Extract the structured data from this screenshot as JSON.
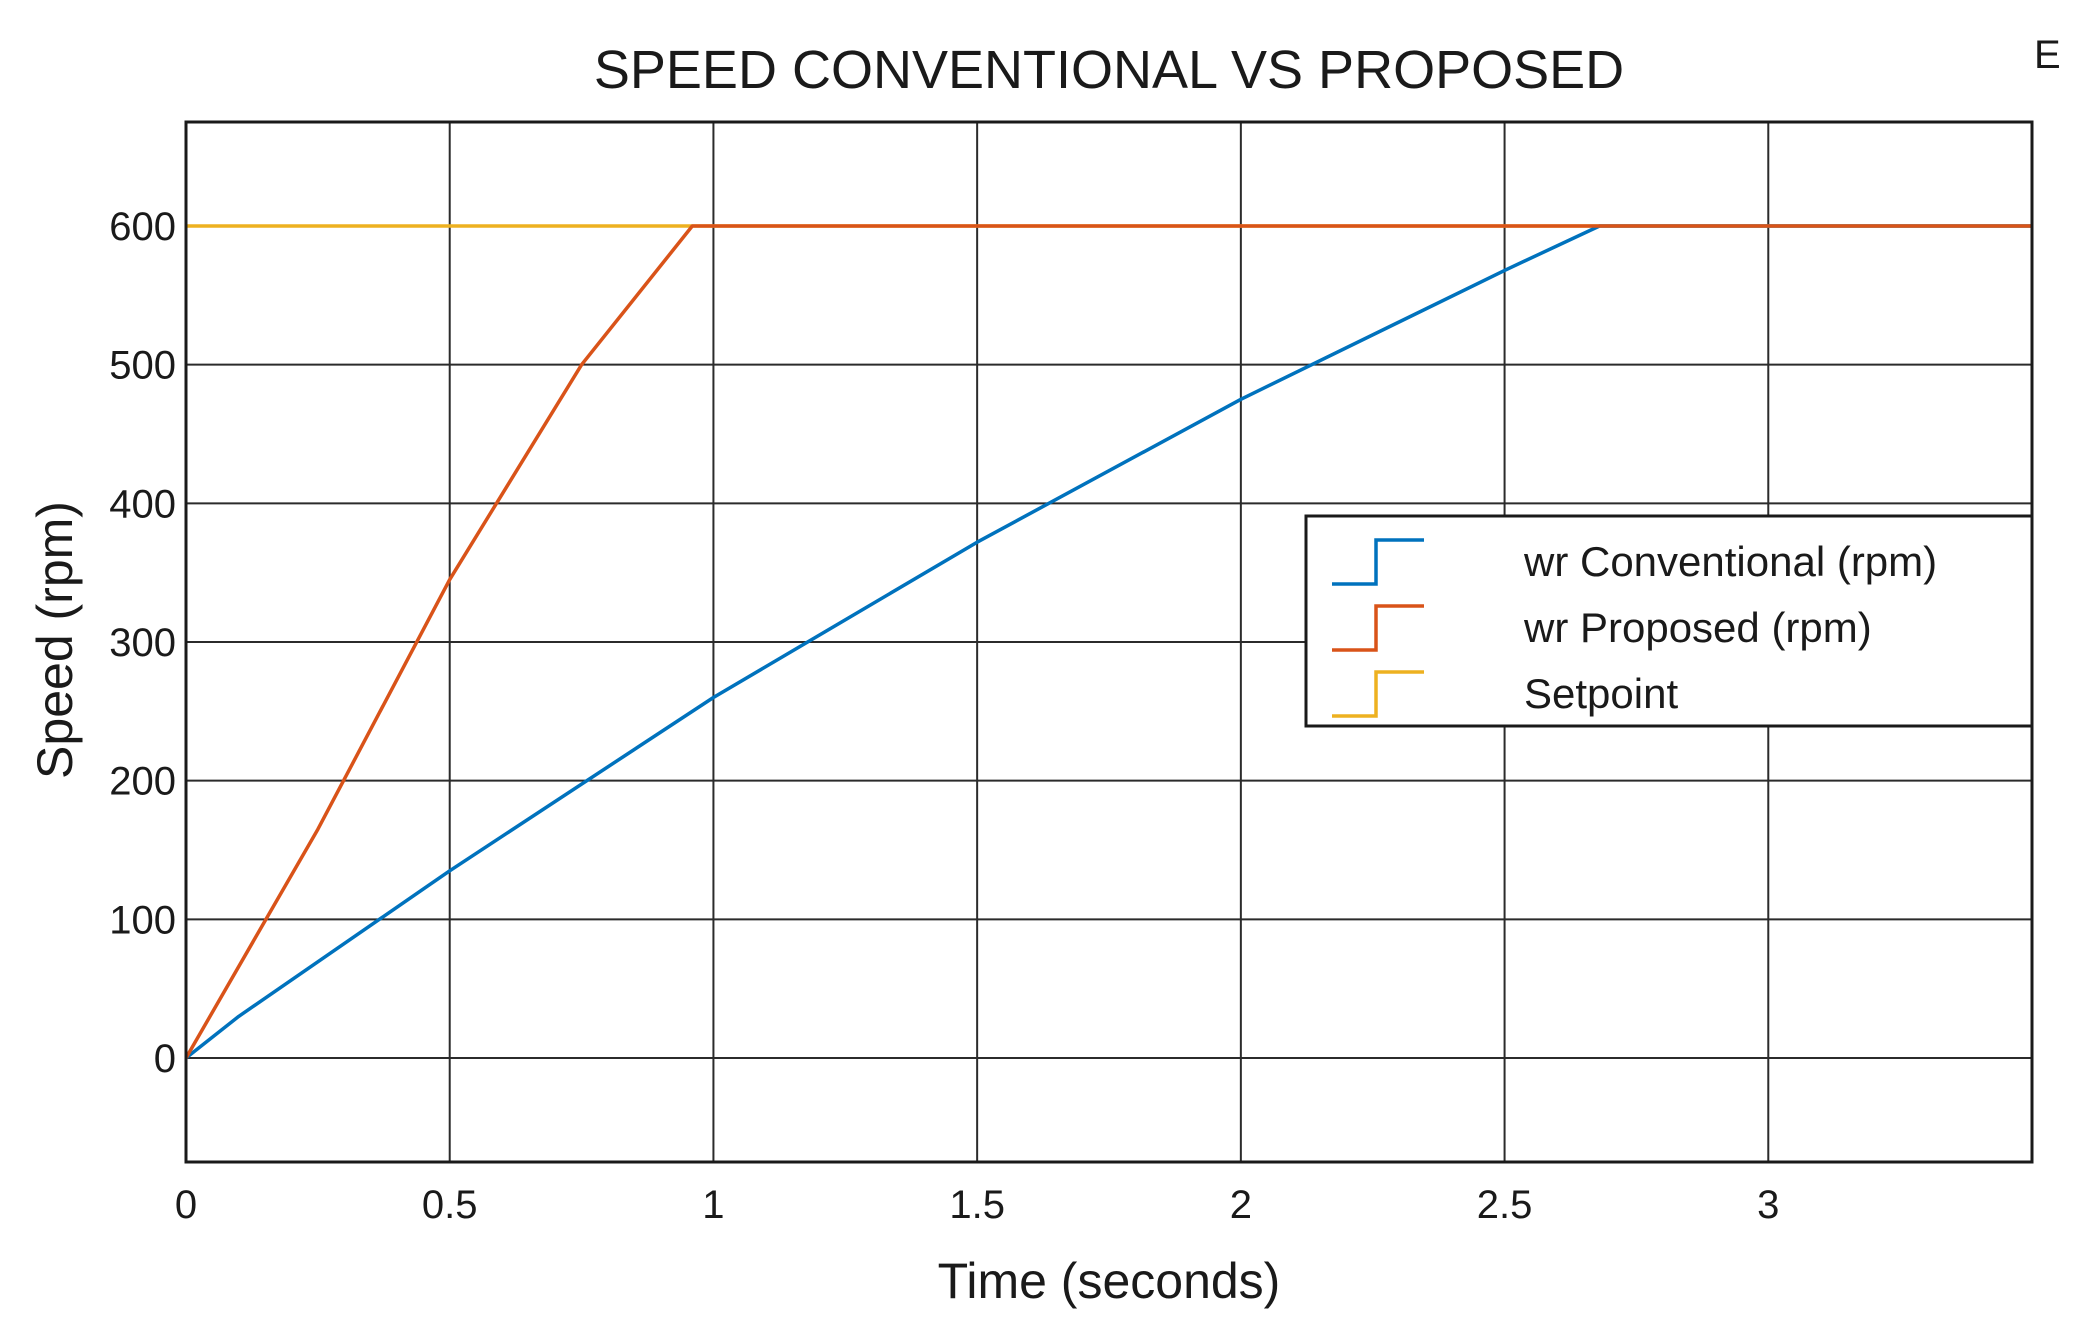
{
  "chart_data": {
    "type": "line",
    "title": "SPEED CONVENTIONAL VS PROPOSED",
    "xlabel": "Time (seconds)",
    "ylabel": "Speed (rpm)",
    "xlim": [
      0,
      3.5
    ],
    "ylim": [
      -75,
      675
    ],
    "xticks": [
      0,
      0.5,
      1,
      1.5,
      2,
      2.5,
      3
    ],
    "xtick_labels": [
      "0",
      "0.5",
      "1",
      "1.5",
      "2",
      "2.5",
      "3"
    ],
    "yticks": [
      0,
      100,
      200,
      300,
      400,
      500,
      600
    ],
    "ytick_labels": [
      "0",
      "100",
      "200",
      "300",
      "400",
      "500",
      "600"
    ],
    "grid": true,
    "legend_position": "right",
    "corner_glyph": "E",
    "series": [
      {
        "name": "wr  Conventional (rpm)",
        "color": "#0072BD",
        "x": [
          0,
          0.1,
          0.5,
          1.0,
          1.5,
          2.0,
          2.5,
          2.68,
          3.5
        ],
        "y": [
          0,
          30,
          135,
          260,
          372,
          475,
          568,
          600,
          600
        ]
      },
      {
        "name": "wr  Proposed (rpm)",
        "color": "#D95319",
        "x": [
          0,
          0.25,
          0.5,
          0.75,
          0.96,
          3.5
        ],
        "y": [
          0,
          165,
          345,
          500,
          600,
          600
        ]
      },
      {
        "name": "Setpoint",
        "color": "#EDB120",
        "x": [
          0,
          3.5
        ],
        "y": [
          600,
          600
        ]
      }
    ]
  }
}
